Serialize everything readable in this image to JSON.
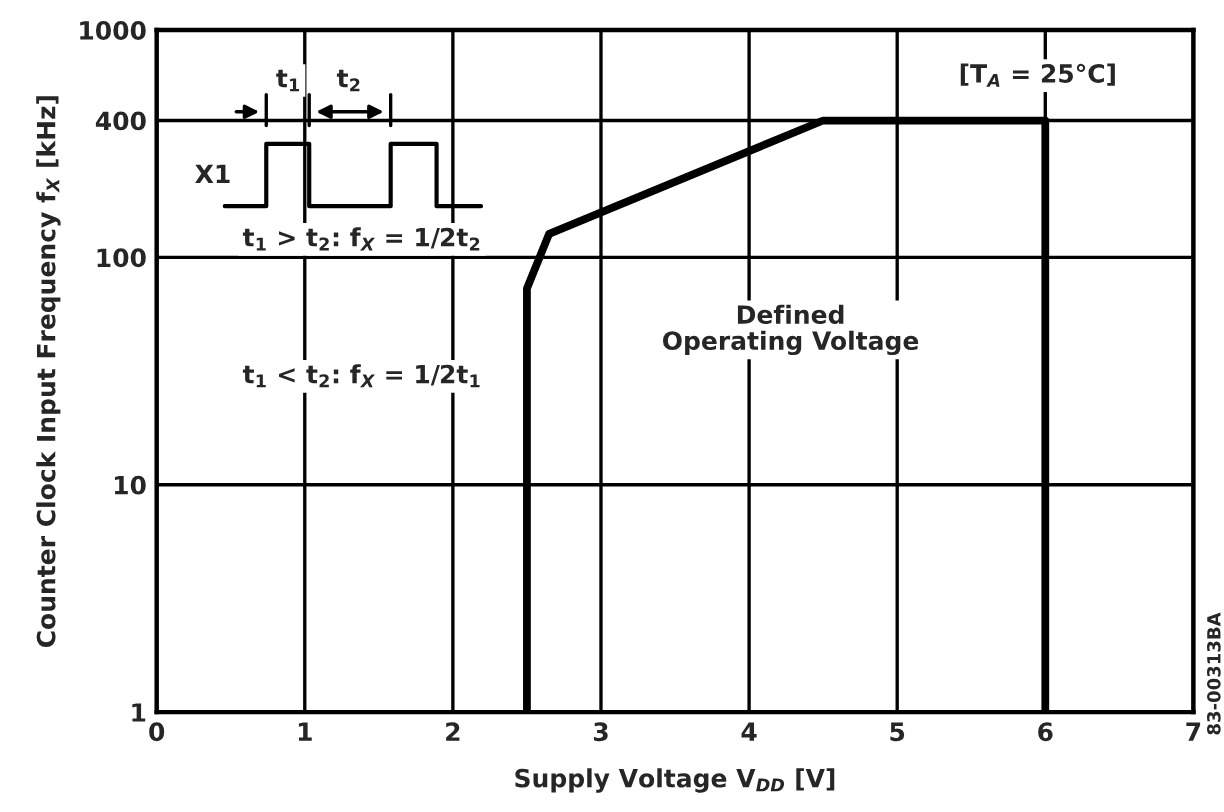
{
  "chart_data": {
    "type": "line",
    "xlabel": "Supply Voltage V$_{DD}$ [V]",
    "ylabel": "Counter Clock Input Frequency f$_{X}$ [kHz]",
    "series": [
      {
        "color": "#000000",
        "x": [
          2.5,
          2.5,
          2.65,
          4.5,
          6,
          6
        ],
        "values": [
          1,
          73,
          127,
          400,
          400,
          1
        ]
      }
    ],
    "xlim": [
      0,
      7
    ],
    "xticks": [
      0,
      1,
      2,
      3,
      4,
      5,
      6,
      7
    ],
    "ylim": [
      1,
      1000
    ],
    "yticks": [
      1,
      10,
      100,
      400,
      1000
    ],
    "log": "y",
    "grid": true,
    "marker": "none",
    "line_style": "solid",
    "annotations": [
      "t$_{1}$",
      "t$_{2}$",
      "X1",
      "t$_{1}$ > t$_{2}$: f$_{X}$ = 1/2t$_{2}$",
      "t$_{1}$ < t$_{2}$: f$_{X}$ = 1/2t$_{1}$",
      "[T$_{A}$ = 25°C]",
      "Defined\nOperating Voltage",
      "83-00313BA"
    ]
  }
}
